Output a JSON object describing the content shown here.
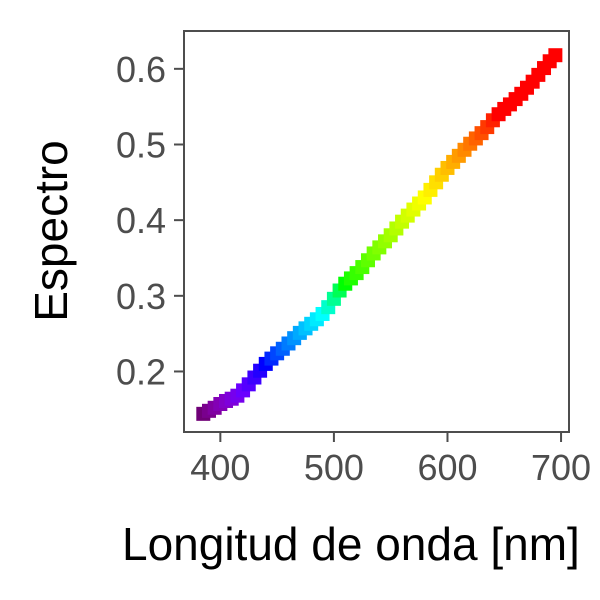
{
  "chart_data": {
    "type": "scatter",
    "title": "",
    "xlabel": "Longitud de onda [nm]",
    "ylabel": "Espectro",
    "xlim": [
      368,
      707
    ],
    "ylim": [
      0.12,
      0.65
    ],
    "x_ticks": [
      400,
      500,
      600,
      700
    ],
    "y_ticks": [
      0.2,
      0.3,
      0.4,
      0.5,
      0.6
    ],
    "x_tick_labels": [
      "400",
      "500",
      "600",
      "700"
    ],
    "y_tick_labels": [
      "0.2",
      "0.3",
      "0.4",
      "0.5",
      "0.6"
    ],
    "grid": false,
    "marker": "square",
    "color_encoding": "wavelength (visible spectrum)",
    "points": [
      {
        "x": 385,
        "y": 0.144
      },
      {
        "x": 390,
        "y": 0.148
      },
      {
        "x": 395,
        "y": 0.152
      },
      {
        "x": 400,
        "y": 0.157
      },
      {
        "x": 405,
        "y": 0.161
      },
      {
        "x": 410,
        "y": 0.164
      },
      {
        "x": 415,
        "y": 0.168
      },
      {
        "x": 420,
        "y": 0.175
      },
      {
        "x": 425,
        "y": 0.183
      },
      {
        "x": 430,
        "y": 0.192
      },
      {
        "x": 435,
        "y": 0.201
      },
      {
        "x": 440,
        "y": 0.21
      },
      {
        "x": 445,
        "y": 0.217
      },
      {
        "x": 450,
        "y": 0.224
      },
      {
        "x": 455,
        "y": 0.23
      },
      {
        "x": 460,
        "y": 0.237
      },
      {
        "x": 465,
        "y": 0.244
      },
      {
        "x": 470,
        "y": 0.251
      },
      {
        "x": 475,
        "y": 0.257
      },
      {
        "x": 480,
        "y": 0.263
      },
      {
        "x": 485,
        "y": 0.269
      },
      {
        "x": 490,
        "y": 0.276
      },
      {
        "x": 495,
        "y": 0.285
      },
      {
        "x": 500,
        "y": 0.296
      },
      {
        "x": 505,
        "y": 0.307
      },
      {
        "x": 510,
        "y": 0.316
      },
      {
        "x": 515,
        "y": 0.323
      },
      {
        "x": 520,
        "y": 0.33
      },
      {
        "x": 525,
        "y": 0.338
      },
      {
        "x": 530,
        "y": 0.347
      },
      {
        "x": 535,
        "y": 0.356
      },
      {
        "x": 540,
        "y": 0.364
      },
      {
        "x": 545,
        "y": 0.372
      },
      {
        "x": 550,
        "y": 0.38
      },
      {
        "x": 555,
        "y": 0.389
      },
      {
        "x": 560,
        "y": 0.398
      },
      {
        "x": 565,
        "y": 0.406
      },
      {
        "x": 570,
        "y": 0.414
      },
      {
        "x": 575,
        "y": 0.422
      },
      {
        "x": 580,
        "y": 0.43
      },
      {
        "x": 585,
        "y": 0.44
      },
      {
        "x": 590,
        "y": 0.45
      },
      {
        "x": 595,
        "y": 0.46
      },
      {
        "x": 600,
        "y": 0.469
      },
      {
        "x": 605,
        "y": 0.477
      },
      {
        "x": 610,
        "y": 0.485
      },
      {
        "x": 615,
        "y": 0.493
      },
      {
        "x": 620,
        "y": 0.501
      },
      {
        "x": 625,
        "y": 0.508
      },
      {
        "x": 630,
        "y": 0.515
      },
      {
        "x": 635,
        "y": 0.523
      },
      {
        "x": 640,
        "y": 0.532
      },
      {
        "x": 645,
        "y": 0.54
      },
      {
        "x": 650,
        "y": 0.547
      },
      {
        "x": 655,
        "y": 0.553
      },
      {
        "x": 660,
        "y": 0.56
      },
      {
        "x": 665,
        "y": 0.567
      },
      {
        "x": 670,
        "y": 0.575
      },
      {
        "x": 675,
        "y": 0.583
      },
      {
        "x": 680,
        "y": 0.592
      },
      {
        "x": 685,
        "y": 0.601
      },
      {
        "x": 690,
        "y": 0.61
      },
      {
        "x": 695,
        "y": 0.618
      }
    ]
  }
}
